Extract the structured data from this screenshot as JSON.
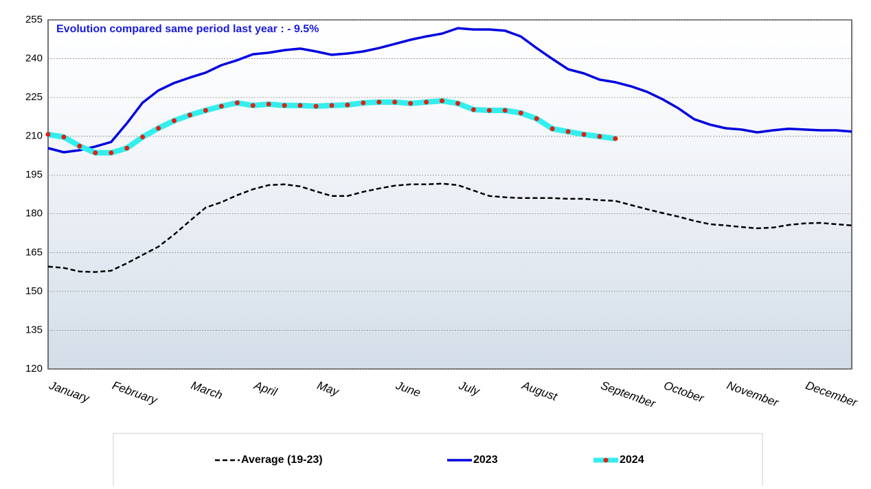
{
  "chart_data": {
    "type": "line",
    "annotation": "Evolution compared same period last year   : - 9.5%",
    "categories": [
      "January",
      null,
      null,
      null,
      "February",
      null,
      null,
      null,
      null,
      "March",
      null,
      null,
      null,
      "April",
      null,
      null,
      null,
      "May",
      null,
      null,
      null,
      null,
      "June",
      null,
      null,
      null,
      "July",
      null,
      null,
      null,
      "August",
      null,
      null,
      null,
      null,
      "September",
      null,
      null,
      null,
      "October",
      null,
      null,
      null,
      "November",
      null,
      null,
      null,
      null,
      "December",
      null,
      null,
      null
    ],
    "series": [
      {
        "name": "Average (19-23)",
        "color": "#000000",
        "dash": true,
        "values": [
          159.6,
          159.1,
          157.7,
          157.5,
          158,
          160.9,
          164.1,
          167.3,
          172,
          177.3,
          182.4,
          184.5,
          187.2,
          189.5,
          191.1,
          191.4,
          190.6,
          188.7,
          186.9,
          186.9,
          188.5,
          189.8,
          190.9,
          191.4,
          191.4,
          191.7,
          191.1,
          189,
          186.9,
          186.4,
          186.1,
          186.1,
          186.1,
          185.8,
          185.8,
          185.3,
          185,
          183.4,
          181.8,
          180.3,
          178.9,
          177.3,
          176,
          175.5,
          174.9,
          174.4,
          174.7,
          175.7,
          176.3,
          176.5,
          176,
          175.5
        ]
      },
      {
        "name": "2023",
        "color": "#0000e0",
        "dash": false,
        "values": [
          205.4,
          203.8,
          204.6,
          206,
          207.8,
          215,
          223,
          227.7,
          230.6,
          232.7,
          234.6,
          237.5,
          239.4,
          241.7,
          242.3,
          243.3,
          243.9,
          242.8,
          241.5,
          242,
          242.8,
          244.1,
          245.7,
          247.3,
          248.6,
          249.7,
          251.8,
          251.3,
          251.3,
          250.8,
          248.6,
          244.1,
          239.9,
          235.9,
          234.3,
          231.9,
          230.9,
          229.3,
          227.2,
          224.3,
          220.8,
          216.6,
          214.5,
          213.1,
          212.6,
          211.5,
          212.3,
          212.9,
          212.6,
          212.3,
          212.3,
          211.8
        ]
      },
      {
        "name": "2024",
        "color": "#33eeee",
        "marker_color": "#e02010",
        "dash": false,
        "values": [
          210.7,
          209.7,
          206.2,
          203.6,
          203.6,
          205.4,
          209.7,
          213.1,
          216,
          218.2,
          220,
          221.6,
          222.9,
          221.9,
          222.4,
          221.9,
          221.9,
          221.6,
          221.9,
          222.1,
          222.9,
          223.2,
          223.2,
          222.7,
          223.2,
          223.7,
          222.7,
          220.3,
          220,
          220,
          219,
          216.8,
          212.9,
          211.8,
          210.7,
          209.9,
          209.1,
          null,
          null,
          null,
          null,
          null,
          null,
          null,
          null,
          null,
          null,
          null,
          null,
          null,
          null,
          null
        ]
      }
    ],
    "ylim": [
      120,
      255
    ],
    "yticks": [
      120,
      135,
      150,
      165,
      180,
      195,
      210,
      225,
      240,
      255
    ],
    "grid": true,
    "legend": "bottom"
  }
}
